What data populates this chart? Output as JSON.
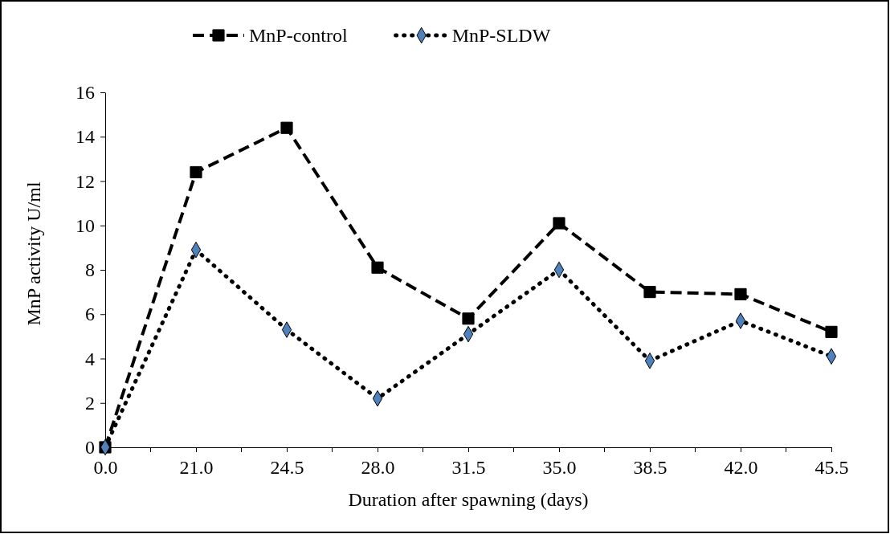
{
  "chart_data": {
    "type": "line",
    "xlabel": "Duration after spawning (days)",
    "ylabel": "MnP activity U/ml",
    "categories": [
      "0.0",
      "21.0",
      "24.5",
      "28.0",
      "31.5",
      "35.0",
      "38.5",
      "42.0",
      "45.5"
    ],
    "series": [
      {
        "name": "MnP-control",
        "color": "#000000",
        "marker": "square",
        "line_style": "dashed",
        "values": [
          0,
          12.4,
          14.4,
          8.1,
          5.8,
          10.1,
          7.0,
          6.9,
          5.2
        ]
      },
      {
        "name": "MnP-SLDW",
        "color": "#4f81bd",
        "marker": "diamond",
        "line_style": "dotted",
        "values": [
          0,
          8.9,
          5.3,
          2.2,
          5.1,
          8.0,
          3.9,
          5.7,
          4.1
        ]
      }
    ],
    "ylim": [
      0,
      16
    ],
    "yticks": [
      0,
      2,
      4,
      6,
      8,
      10,
      12,
      14,
      16
    ],
    "grid": false,
    "legend": "top"
  }
}
